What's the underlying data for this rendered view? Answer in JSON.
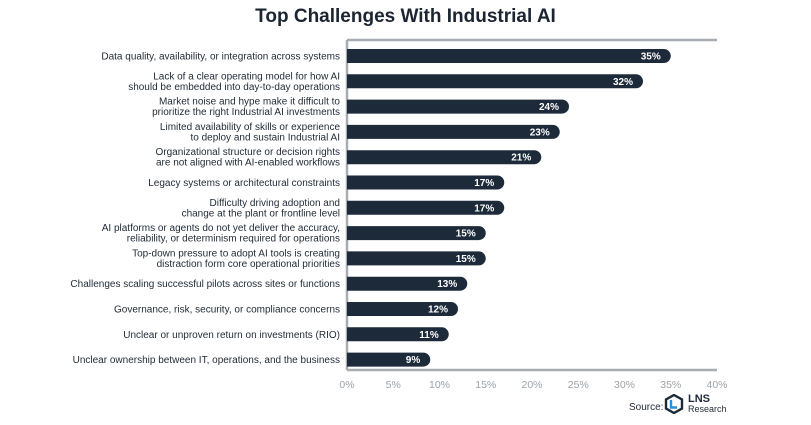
{
  "title": "Top Challenges With Industrial AI",
  "source_label": "Source:",
  "brand": {
    "name": "LNS",
    "sub": "Research"
  },
  "colors": {
    "bar": "#1c2a3a",
    "axis": "#a7adb3",
    "tick": "#9aa3ab"
  },
  "chart_data": {
    "type": "bar",
    "orientation": "horizontal",
    "title": "Top Challenges With Industrial AI",
    "categories": [
      [
        "Data quality, availability, or integration across systems"
      ],
      [
        "Lack of a clear operating model for how AI",
        "should be embedded into day-to-day operations"
      ],
      [
        "Market noise and hype make it difficult to",
        "prioritize the right Industrial AI investments"
      ],
      [
        "Limited availability of skills or experience",
        "to deploy and sustain Industrial AI"
      ],
      [
        "Organizational structure or decision rights",
        "are not aligned with AI-enabled workflows"
      ],
      [
        "Legacy systems or architectural constraints"
      ],
      [
        "Difficulty driving adoption and",
        "change at the plant or frontline level"
      ],
      [
        "AI platforms or agents do not yet deliver the accuracy,",
        "reliability, or determinism required for operations"
      ],
      [
        "Top-down pressure to adopt AI tools is creating",
        "distraction form core operational priorities"
      ],
      [
        "Challenges scaling successful pilots across sites or functions"
      ],
      [
        "Governance, risk, security, or compliance concerns"
      ],
      [
        "Unclear or unproven return on investments (RIO)"
      ],
      [
        "Unclear ownership between IT, operations, and the business"
      ]
    ],
    "values": [
      35,
      32,
      24,
      23,
      21,
      17,
      17,
      15,
      15,
      13,
      12,
      11,
      9
    ],
    "value_labels": [
      "35%",
      "32%",
      "24%",
      "23%",
      "21%",
      "17%",
      "17%",
      "15%",
      "15%",
      "13%",
      "12%",
      "11%",
      "9%"
    ],
    "xlim": [
      0,
      40
    ],
    "xticks": [
      0,
      5,
      10,
      15,
      20,
      25,
      30,
      35,
      40
    ],
    "xtick_labels": [
      "0%",
      "5%",
      "10%",
      "15%",
      "20%",
      "25%",
      "30%",
      "35%",
      "40%"
    ],
    "grid": false,
    "legend": "none"
  }
}
